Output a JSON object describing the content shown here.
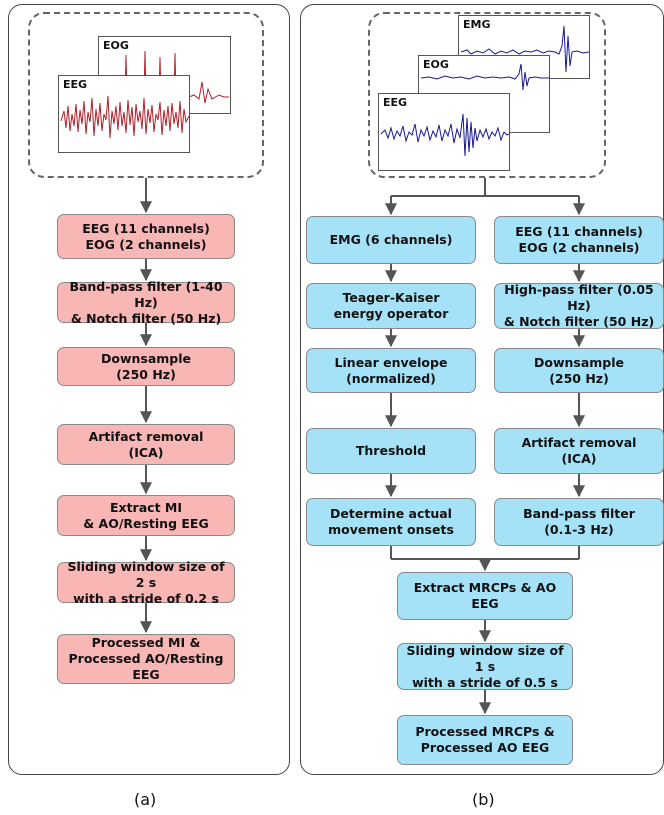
{
  "panel_a": {
    "caption": "(a)",
    "signal_labels": [
      "EOG",
      "EEG"
    ],
    "steps": [
      "EEG (11 channels)\nEOG (2 channels)",
      "Band-pass filter (1-40 Hz)\n& Notch filter (50 Hz)",
      "Downsample\n(250 Hz)",
      "Artifact removal\n(ICA)",
      "Extract MI\n& AO/Resting EEG",
      "Sliding window size of 2 s\nwith a stride of 0.2 s",
      "Processed MI &\nProcessed AO/Resting EEG"
    ]
  },
  "panel_b": {
    "caption": "(b)",
    "signal_labels": [
      "EMG",
      "EOG",
      "EEG"
    ],
    "left_steps": [
      "EMG (6 channels)",
      "Teager-Kaiser\nenergy operator",
      "Linear envelope\n(normalized)",
      "Threshold",
      "Determine actual\nmovement onsets"
    ],
    "right_steps": [
      "EEG (11 channels)\nEOG (2 channels)",
      "High-pass filter (0.05 Hz)\n& Notch filter (50 Hz)",
      "Downsample\n(250 Hz)",
      "Artifact removal\n(ICA)",
      "Band-pass filter\n(0.1-3 Hz)"
    ],
    "merged_steps": [
      "Extract MRCPs & AO EEG",
      "Sliding window size of 1 s\nwith a stride of 0.5 s",
      "Processed MRCPs &\nProcessed AO EEG"
    ]
  },
  "colors": {
    "panel_a_box": "#f8b6b4",
    "panel_b_box": "#a6e2f7",
    "panel_a_signal": "#b0202a",
    "panel_b_signal": "#1a1a8c",
    "arrow": "#555555"
  }
}
